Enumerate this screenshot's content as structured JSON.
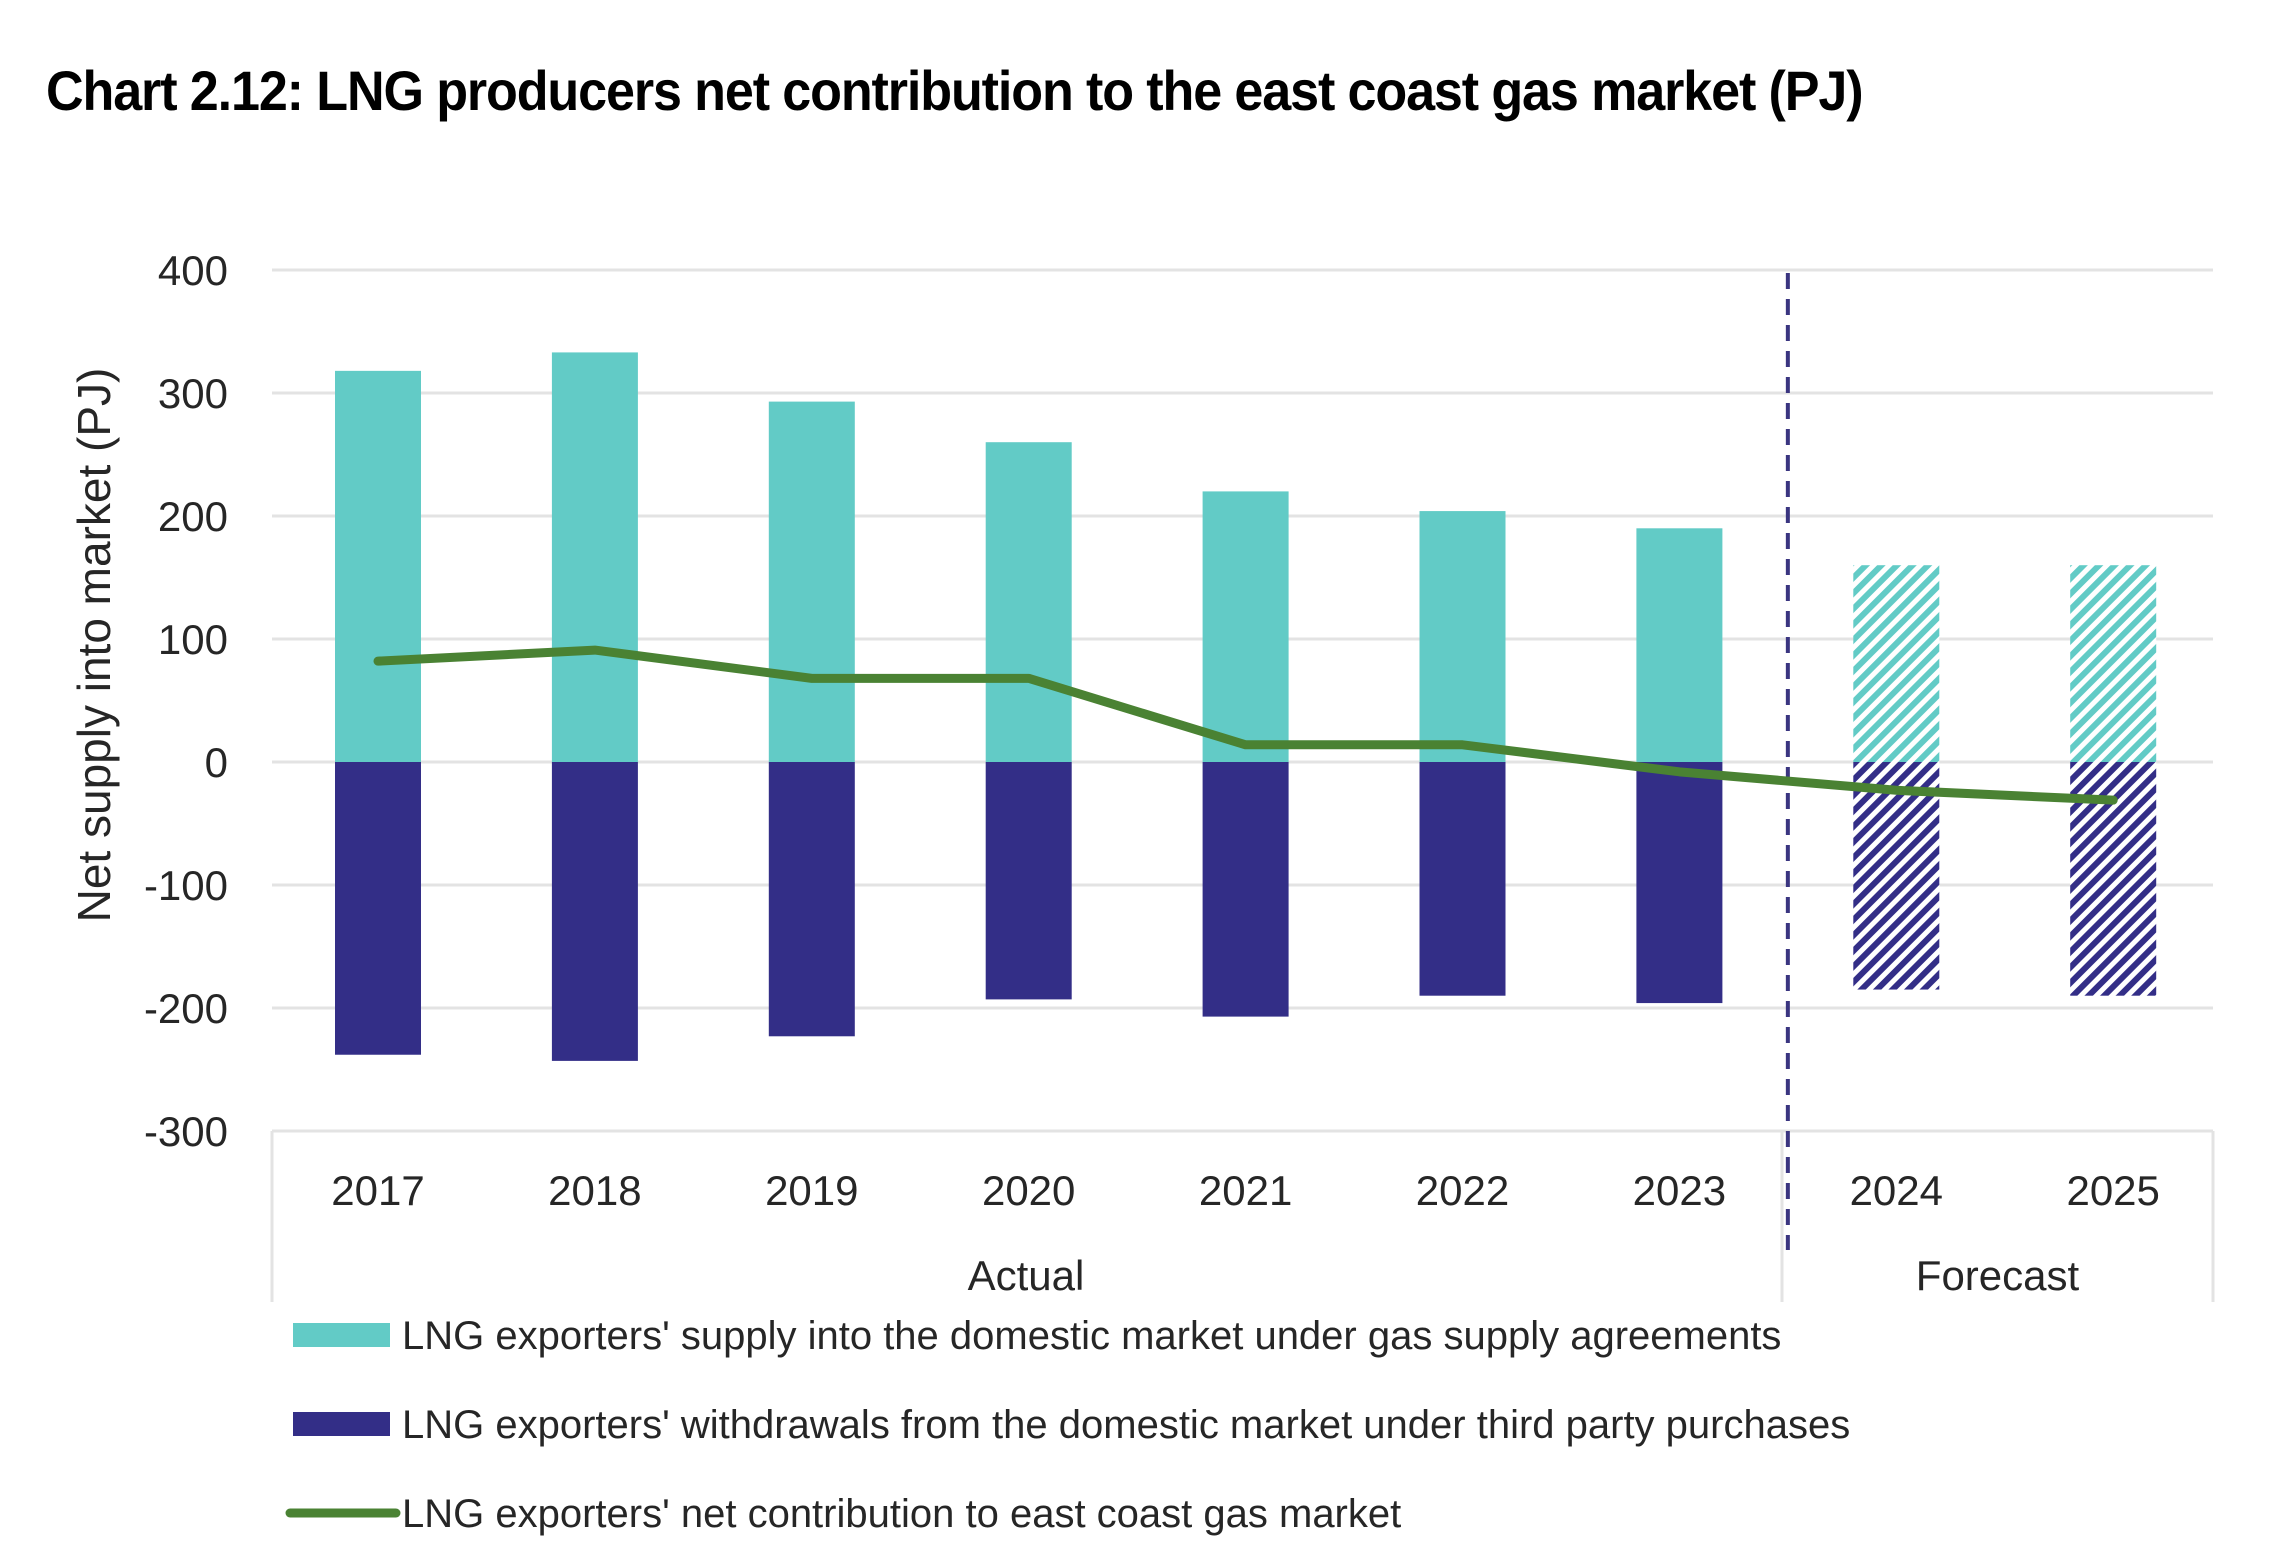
{
  "title": "Chart 2.12: LNG producers net contribution to the east coast gas market (PJ)",
  "chart_data": {
    "type": "bar",
    "subtype": "stacked bar with line overlay",
    "title": "Chart 2.12: LNG producers net contribution to the east coast gas market (PJ)",
    "xlabel": "",
    "ylabel": "Net supply into market (PJ)",
    "ylim": [
      -300,
      400
    ],
    "yticks": [
      400,
      300,
      200,
      100,
      0,
      -100,
      -200,
      -300
    ],
    "ytick_labels": [
      "400",
      "300",
      "200",
      "100",
      "0",
      "-100",
      "-200",
      "-300"
    ],
    "grid": true,
    "categories": [
      "2017",
      "2018",
      "2019",
      "2020",
      "2021",
      "2022",
      "2023",
      "2024",
      "2025"
    ],
    "category_groups": [
      {
        "label": "Actual",
        "categories": [
          "2017",
          "2018",
          "2019",
          "2020",
          "2021",
          "2022",
          "2023"
        ]
      },
      {
        "label": "Forecast",
        "categories": [
          "2024",
          "2025"
        ]
      }
    ],
    "forecast_divider_after": "2023",
    "series": [
      {
        "name": "LNG exporters' supply into the domestic market under gas supply agreements",
        "type": "bar",
        "color": "#62CBC6",
        "values": [
          318,
          333,
          293,
          260,
          220,
          204,
          190,
          160,
          160
        ]
      },
      {
        "name": "LNG exporters' withdrawals from the domestic market under third party purchases",
        "type": "bar",
        "color": "#332E87",
        "values": [
          -238,
          -243,
          -223,
          -193,
          -207,
          -190,
          -196,
          -185,
          -190
        ]
      },
      {
        "name": "LNG exporters' net contribution to east coast gas market",
        "type": "line",
        "color": "#4A8233",
        "values": [
          82,
          91,
          68,
          68,
          14,
          14,
          -8,
          -23,
          -31
        ]
      }
    ],
    "forecast_pattern": "diagonal-hatch",
    "legend_position": "bottom",
    "colors": {
      "supply": "#62CBC6",
      "withdrawals": "#332E87",
      "net": "#4A8233",
      "divider": "#3A3580",
      "grid": "#E3E3E3",
      "text": "#262626"
    }
  }
}
